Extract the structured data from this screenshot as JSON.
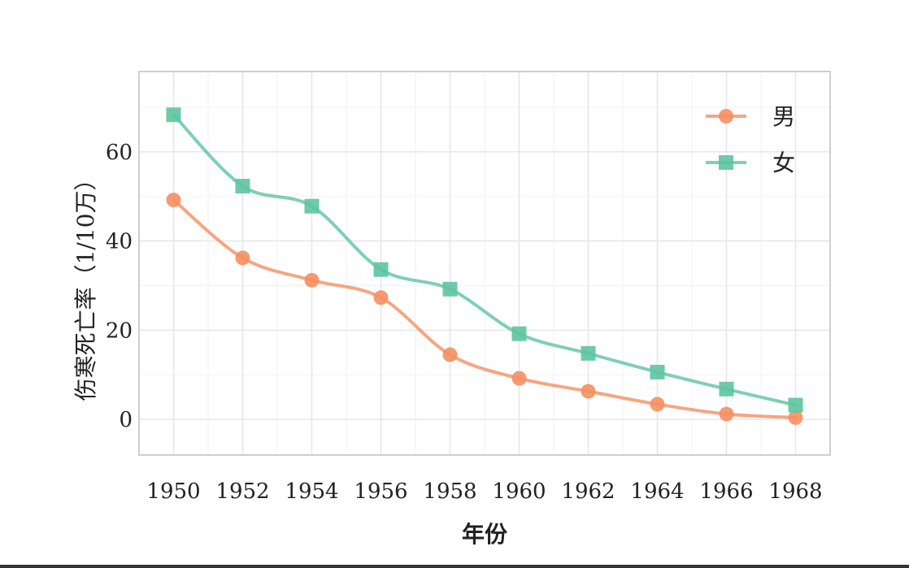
{
  "chart_data": {
    "type": "line",
    "xlabel": "年份",
    "ylabel": "伤寒死亡率（1/10万）",
    "x": [
      1950,
      1952,
      1954,
      1956,
      1958,
      1960,
      1962,
      1964,
      1966,
      1968
    ],
    "xticks": [
      "1950",
      "1952",
      "1954",
      "1956",
      "1958",
      "1960",
      "1962",
      "1964",
      "1966",
      "1968"
    ],
    "yticks": [
      "0",
      "20",
      "40",
      "60"
    ],
    "xlim": [
      1949,
      1969
    ],
    "ylim": [
      -8,
      78
    ],
    "grid": true,
    "legend_position": "top-right",
    "series": [
      {
        "name": "男",
        "marker": "circle",
        "color": "#F58F62",
        "values": [
          49.2,
          36.2,
          31.2,
          27.3,
          14.5,
          9.2,
          6.3,
          3.4,
          1.2,
          0.4
        ]
      },
      {
        "name": "女",
        "marker": "square",
        "color": "#5DC4A0",
        "values": [
          68.3,
          52.3,
          47.8,
          33.6,
          29.2,
          19.2,
          14.8,
          10.6,
          6.8,
          3.2
        ]
      }
    ]
  }
}
